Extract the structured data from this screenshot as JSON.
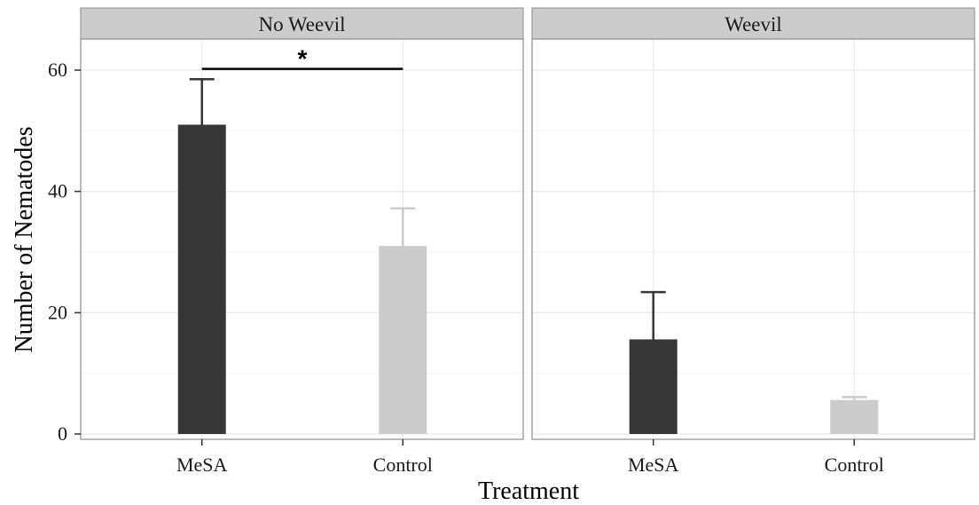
{
  "chart_data": {
    "type": "bar",
    "xlabel": "Treatment",
    "ylabel": "Number of Nematodes",
    "ylim": [
      0,
      65
    ],
    "yticks": [
      0,
      20,
      40,
      60
    ],
    "categories": [
      "MeSA",
      "Control"
    ],
    "category_colors": [
      "#363636",
      "#cccccc"
    ],
    "panels": [
      {
        "title": "No Weevil",
        "values": [
          51,
          31
        ],
        "error_upper": [
          58.5,
          37.2
        ],
        "error_lower": [
          43.5,
          null
        ],
        "significance": {
          "label": "*",
          "from": "MeSA",
          "to": "Control",
          "y": 60.2
        }
      },
      {
        "title": "Weevil",
        "values": [
          15.6,
          5.6
        ],
        "error_upper": [
          23.4,
          6.1
        ],
        "error_lower": [
          8.0,
          null
        ]
      }
    ],
    "grid": true,
    "legend": "none"
  }
}
